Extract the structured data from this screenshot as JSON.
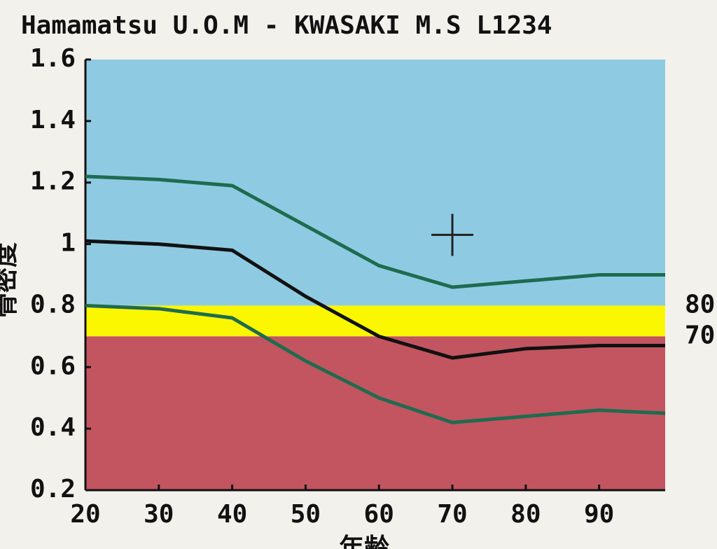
{
  "chart_data": {
    "type": "line",
    "title": "Hamamatsu U.O.M - KWASAKI M.S L1234",
    "y_label": "骨密度",
    "x_label": "年齢",
    "x": [
      20,
      30,
      40,
      50,
      60,
      70,
      80,
      90,
      99
    ],
    "series": [
      {
        "color": "#1f6b4f",
        "values": [
          1.22,
          1.21,
          1.19,
          1.06,
          0.93,
          0.86,
          0.88,
          0.9,
          0.9
        ]
      },
      {
        "color": "#111111",
        "values": [
          1.01,
          1.0,
          0.98,
          0.83,
          0.7,
          0.63,
          0.66,
          0.67,
          0.67
        ]
      },
      {
        "color": "#1f6b4f",
        "values": [
          0.8,
          0.79,
          0.76,
          0.62,
          0.5,
          0.42,
          0.44,
          0.46,
          0.45
        ]
      }
    ],
    "bands": [
      {
        "from": 0.8,
        "to": 1.6,
        "color": "#8ecbe3"
      },
      {
        "from": 0.7,
        "to": 0.8,
        "color": "#fbf700"
      },
      {
        "from": 0.2,
        "to": 0.7,
        "color": "#c25560"
      }
    ],
    "band_labels": [
      {
        "value": 0.8,
        "label": "80"
      },
      {
        "value": 0.7,
        "label": "70"
      }
    ],
    "marker": {
      "x": 70,
      "y": 1.03
    },
    "xlim": [
      20,
      99
    ],
    "ylim": [
      0.2,
      1.6
    ],
    "xticks": [
      20,
      30,
      40,
      50,
      60,
      70,
      80,
      90
    ],
    "yticks": [
      0.2,
      0.4,
      0.6,
      0.8,
      1,
      1.2,
      1.4,
      1.6
    ]
  }
}
